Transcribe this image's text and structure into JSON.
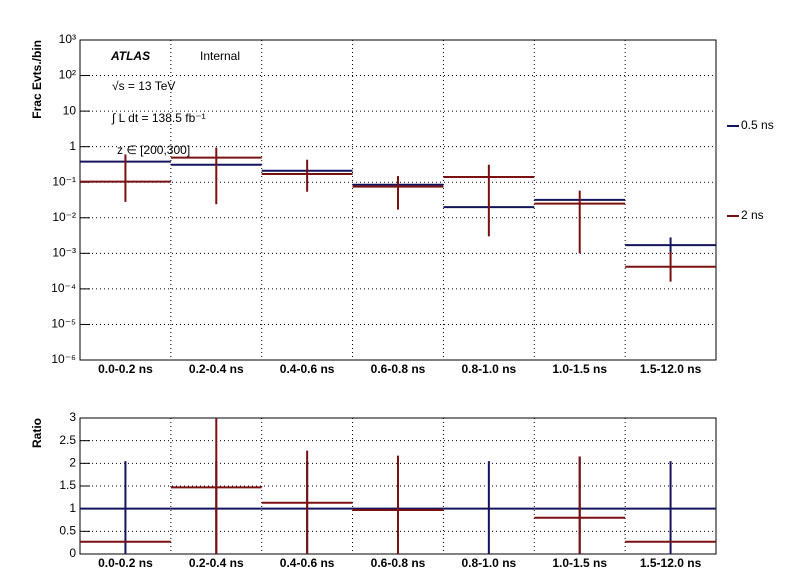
{
  "chart_data": [
    {
      "type": "errorbar",
      "ylabel": "Frac Evts./bin",
      "log_y": true,
      "grid": true,
      "legend": "right",
      "annotations": [
        "ATLAS",
        "Internal",
        "√s = 13 TeV",
        "∫ L dt = 138.5 fb⁻¹",
        "z ∈ [200,300]"
      ],
      "categories": [
        "0.0-0.2 ns",
        "0.2-0.4 ns",
        "0.4-0.6 ns",
        "0.6-0.8 ns",
        "0.8-1.0 ns",
        "1.0-1.5 ns",
        "1.5-12.0 ns"
      ],
      "ylim": [
        1e-06,
        1000
      ],
      "yticks": [
        {
          "value": 1e-06,
          "label": "10⁻⁶"
        },
        {
          "value": 1e-05,
          "label": "10⁻⁵"
        },
        {
          "value": 0.0001,
          "label": "10⁻⁴"
        },
        {
          "value": 0.001,
          "label": "10⁻³"
        },
        {
          "value": 0.01,
          "label": "10⁻²"
        },
        {
          "value": 0.1,
          "label": "10⁻¹"
        },
        1,
        10,
        {
          "value": 100,
          "label": "10²"
        },
        {
          "value": 1000,
          "label": "10³"
        }
      ],
      "series": [
        {
          "name": "0.5 ns",
          "color": "#14145e",
          "values": [
            0.38,
            0.31,
            0.21,
            0.085,
            0.02,
            0.032,
            0.0017
          ],
          "err_low": [
            null,
            null,
            null,
            null,
            null,
            null,
            0.00082
          ],
          "err_high": [
            null,
            null,
            null,
            null,
            null,
            null,
            0.0011
          ]
        },
        {
          "name": "2 ns",
          "color": "#7a1010",
          "values": [
            0.104,
            0.49,
            0.17,
            0.075,
            0.14,
            0.025,
            0.00042
          ],
          "err_low": [
            0.076,
            0.466,
            0.116,
            0.058,
            0.137,
            0.024,
            0.00026
          ],
          "err_high": [
            0.5,
            0.45,
            0.26,
            0.075,
            0.17,
            0.033,
            0.00068
          ]
        }
      ]
    },
    {
      "type": "errorbar",
      "ylabel": "Ratio",
      "log_y": false,
      "grid": true,
      "categories": [
        "0.0-0.2 ns",
        "0.2-0.4 ns",
        "0.4-0.6 ns",
        "0.6-0.8 ns",
        "0.8-1.0 ns",
        "1.0-1.5 ns",
        "1.5-12.0 ns"
      ],
      "ylim": [
        0,
        3
      ],
      "yticks": [
        0,
        0.5,
        1,
        1.5,
        2,
        2.5,
        3
      ],
      "series": [
        {
          "color": "#14145e",
          "values": [
            1,
            1,
            1,
            1,
            1,
            1,
            1
          ],
          "err_low": [
            1.05,
            1.05,
            1.05,
            1.15,
            1.05,
            1.15,
            1.05
          ],
          "err_high": [
            1.05,
            1.05,
            1.05,
            1.15,
            1.05,
            1.15,
            1.05
          ]
        },
        {
          "color": "#7a1010",
          "values": [
            0.27,
            1.47,
            1.13,
            0.97,
            null,
            0.8,
            0.27
          ],
          "err_low": [
            null,
            1.47,
            1.13,
            0.97,
            null,
            0.8,
            null
          ],
          "err_high": [
            null,
            1.55,
            1.15,
            1.2,
            null,
            1.35,
            null
          ]
        }
      ]
    }
  ]
}
